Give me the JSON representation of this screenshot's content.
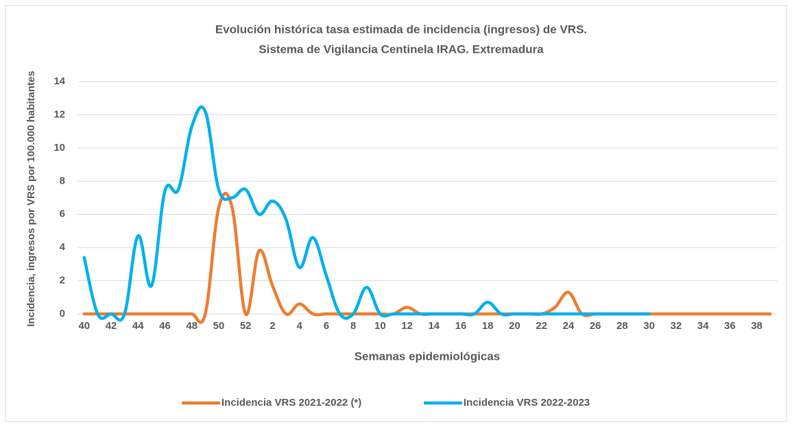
{
  "chart_data": {
    "type": "line",
    "title": "Evolución histórica tasa estimada de incidencia (ingresos) de VRS.",
    "subtitle": "Sistema de Vigilancia Centinela IRAG. Extremadura",
    "x_label": "Semanas epidemiológicas",
    "y_label": "Incidencia, ingresos por VRS por  100.000 habitantes",
    "categories": [
      "40",
      null,
      "42",
      null,
      "44",
      null,
      "46",
      null,
      "48",
      null,
      "50",
      null,
      "52",
      null,
      "2",
      null,
      "4",
      null,
      "6",
      null,
      "8",
      null,
      "10",
      null,
      "12",
      null,
      "14",
      null,
      "16",
      null,
      "18",
      null,
      "20",
      null,
      "22",
      null,
      "24",
      null,
      "26",
      null,
      "28",
      null,
      "30",
      null,
      "32",
      null,
      "34",
      null,
      "36",
      null,
      "38",
      null
    ],
    "series": [
      {
        "name": "Incidencia VRS 2021-2022 (*)",
        "color": "#ED7D31",
        "values": [
          0,
          0,
          0,
          0,
          0,
          0,
          0,
          0,
          0,
          0,
          6.4,
          6.4,
          0,
          3.8,
          1.7,
          0,
          0.6,
          0,
          0,
          0,
          0,
          0,
          0,
          0,
          0.4,
          0,
          0,
          0,
          0,
          0,
          0,
          0,
          0,
          0,
          0,
          0.4,
          1.3,
          0,
          0,
          0,
          0,
          0,
          0,
          0,
          0,
          0,
          0,
          0,
          0,
          0,
          0,
          0
        ]
      },
      {
        "name": "Incidencia VRS 2022-2023",
        "color": "#00B0F0",
        "values": [
          3.4,
          0,
          0,
          0,
          4.7,
          1.7,
          7.4,
          7.5,
          11.3,
          12.2,
          7.5,
          7.0,
          7.5,
          6.0,
          6.8,
          5.7,
          2.8,
          4.6,
          2.3,
          0,
          0,
          1.6,
          0,
          0,
          0,
          0,
          0,
          0,
          0,
          0,
          0.7,
          0,
          0,
          0,
          0,
          0,
          0,
          0,
          0,
          0,
          0,
          0,
          0,
          null,
          null,
          null,
          null,
          null,
          null,
          null,
          null,
          null
        ]
      }
    ],
    "ylim": [
      0,
      14
    ],
    "yticks": [
      0,
      2,
      4,
      6,
      8,
      10,
      12,
      14
    ],
    "grid": true,
    "legend": "bottom"
  }
}
